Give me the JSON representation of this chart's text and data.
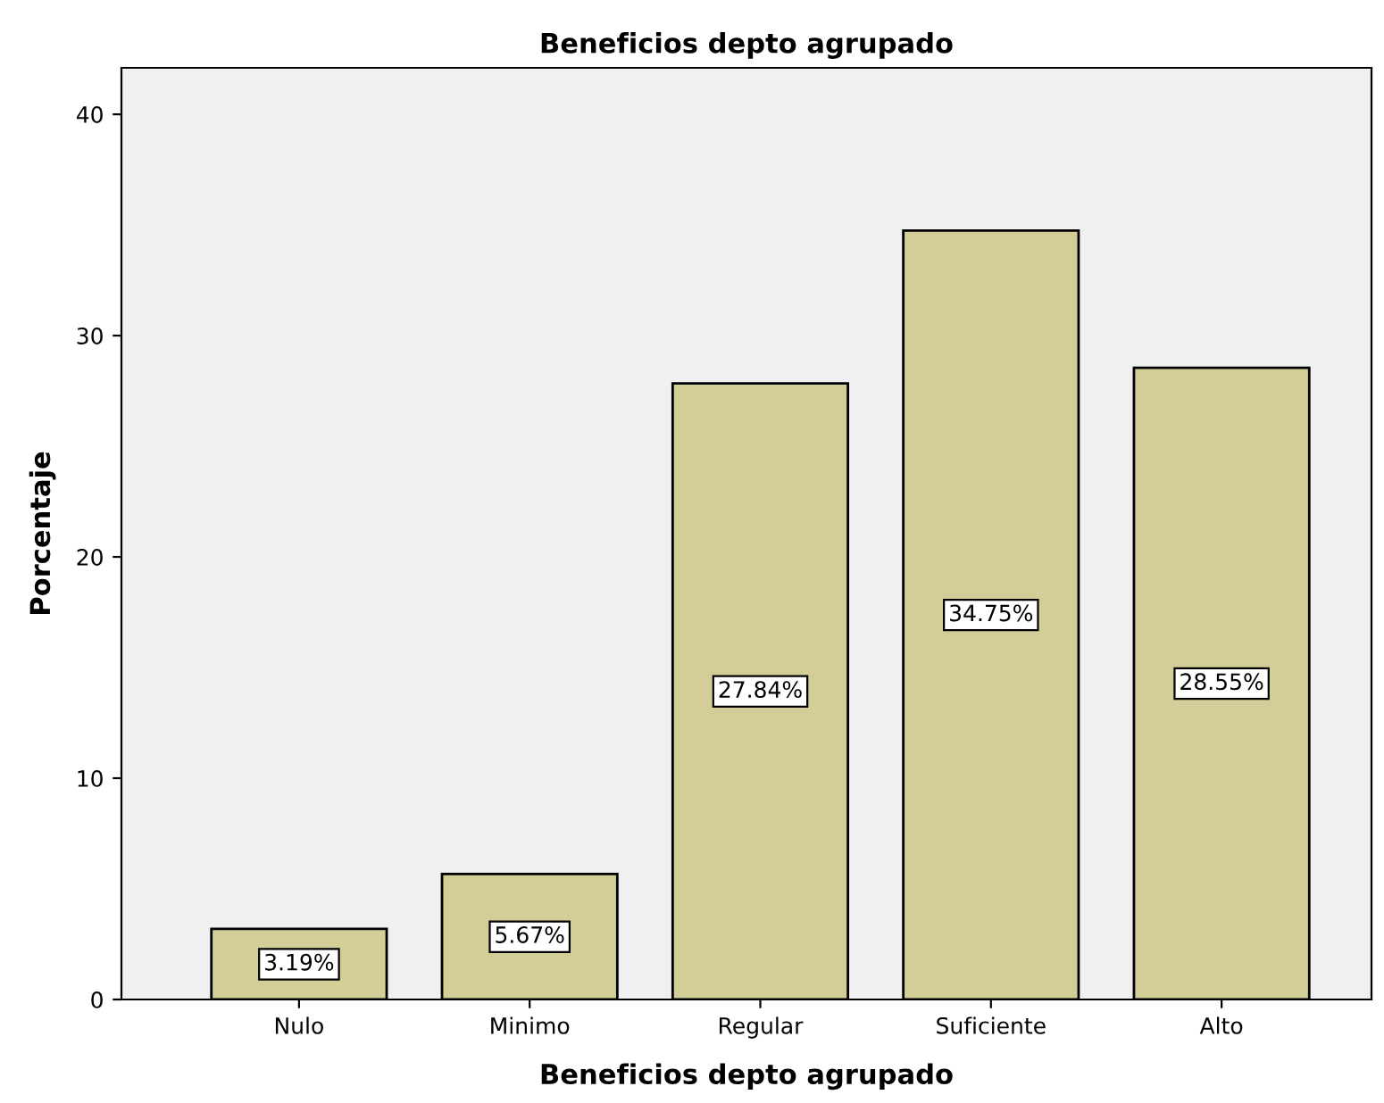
{
  "chart_data": {
    "type": "bar",
    "title": "Beneficios depto agrupado",
    "xlabel": "Beneficios depto agrupado",
    "ylabel": "Porcentaje",
    "categories": [
      "Nulo",
      "Minimo",
      "Regular",
      "Suficiente",
      "Alto"
    ],
    "values": [
      3.19,
      5.67,
      27.84,
      34.75,
      28.55
    ],
    "value_labels": [
      "3.19%",
      "5.67%",
      "27.84%",
      "34.75%",
      "28.55%"
    ],
    "color": "#d3ce97",
    "ylim": [
      0,
      42.1
    ],
    "yticks": [
      0,
      10,
      20,
      30,
      40
    ],
    "grid": false,
    "legend": false
  }
}
